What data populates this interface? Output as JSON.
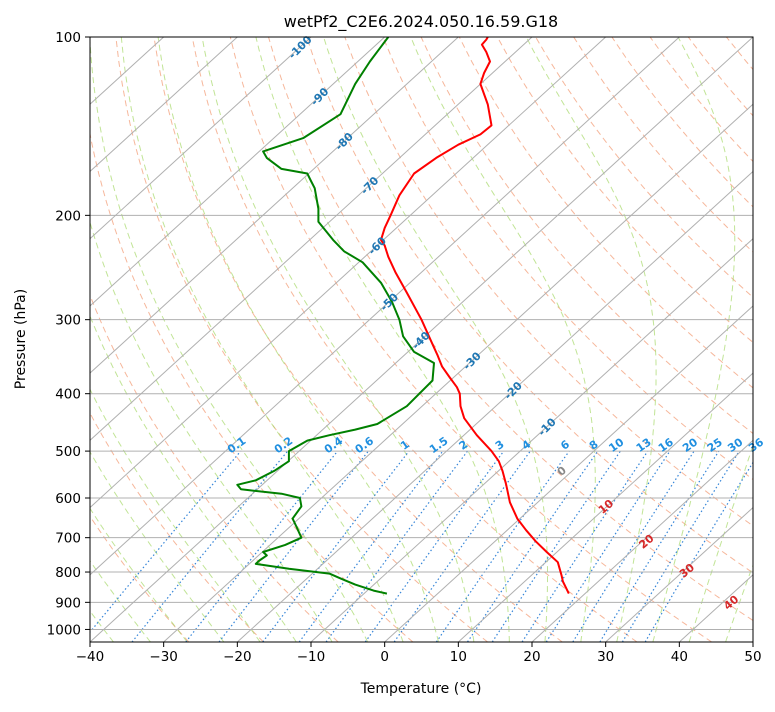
{
  "chart_data": {
    "type": "line",
    "title": "wetPf2_C2E6.2024.050.16.59.G18",
    "xlabel": "Temperature (°C)",
    "ylabel": "Pressure (hPa)",
    "xlim": [
      -40,
      50
    ],
    "ylim": [
      1050,
      100
    ],
    "y_scale": "log",
    "grid": true,
    "x_ticks": [
      "−40",
      "−30",
      "−20",
      "−10",
      "0",
      "10",
      "20",
      "30",
      "40",
      "50"
    ],
    "y_ticks": [
      "100",
      "200",
      "300",
      "400",
      "500",
      "600",
      "700",
      "800",
      "900",
      "1000"
    ],
    "skew_labels": [
      "-100",
      "-90",
      "-80",
      "-70",
      "-60",
      "-50",
      "-40",
      "-30",
      "-20",
      "-10"
    ],
    "mixing_ratio_labels": [
      "0.1",
      "0.2",
      "0.4",
      "0.6",
      "1",
      "1.5",
      "2",
      "3",
      "4",
      "6",
      "8",
      "10",
      "13",
      "16",
      "20",
      "25",
      "30",
      "36"
    ],
    "dry_adiabat_labels": [
      "0",
      "10",
      "20",
      "30",
      "40"
    ],
    "series": [
      {
        "color": "#ff0000",
        "x": [
          25.0,
          24.6,
          24.2,
          24.0,
          23.5,
          22.0,
          20.5,
          19.2,
          18.0,
          17.0,
          16.5,
          16.0,
          15.5,
          14.5,
          12.5,
          10.8,
          10.3,
          10.2,
          9.8,
          8.8,
          7.8,
          7.2,
          6.5,
          5.0,
          3.0,
          1.5,
          0.5,
          0.0,
          -0.5,
          0.0,
          0.8,
          2.0,
          4.0,
          7.0,
          10.0,
          13.0,
          14.5,
          14.0,
          13.0,
          13.5,
          14.3,
          13.8,
          13.2,
          13.8,
          14.0
        ],
        "y": [
          870,
          850,
          830,
          810,
          770,
          740,
          710,
          680,
          650,
          610,
          570,
          540,
          520,
          500,
          470,
          440,
          420,
          400,
          390,
          375,
          360,
          345,
          330,
          300,
          270,
          250,
          235,
          225,
          220,
          210,
          200,
          185,
          170,
          160,
          152,
          146,
          141,
          130,
          120,
          115,
          110,
          106,
          103,
          101,
          100
        ]
      },
      {
        "color": "#008000",
        "x": [
          0.3,
          -1.5,
          -4.0,
          -6.0,
          -7.5,
          -13.0,
          -17.5,
          -17.0,
          -16.0,
          -16.5,
          -13.5,
          -11.3,
          -12.0,
          -12.5,
          -11.3,
          -11.5,
          -14.0,
          -19.5,
          -20.0,
          -17.5,
          -15.0,
          -13.0,
          -13.0,
          -10.5,
          -7.5,
          -4.0,
          -1.0,
          3.0,
          6.5,
          6.7,
          4.0,
          2.5,
          2.0,
          1.0,
          -0.5,
          -3.0,
          -5.5,
          -7.0,
          -9.0,
          -9.0,
          -9.5,
          -10.0,
          -10.5,
          -14.0,
          -16.0,
          -16.5,
          -11.0,
          -6.0,
          -4.0,
          -2.0,
          0.5
        ],
        "y": [
          870,
          860,
          840,
          820,
          805,
          790,
          775,
          765,
          750,
          740,
          720,
          700,
          670,
          650,
          620,
          600,
          590,
          580,
          570,
          560,
          540,
          520,
          500,
          480,
          470,
          460,
          450,
          420,
          380,
          355,
          340,
          320,
          300,
          280,
          260,
          240,
          230,
          220,
          205,
          195,
          180,
          175,
          170,
          167,
          160,
          156,
          148,
          135,
          120,
          110,
          100
        ]
      }
    ]
  }
}
